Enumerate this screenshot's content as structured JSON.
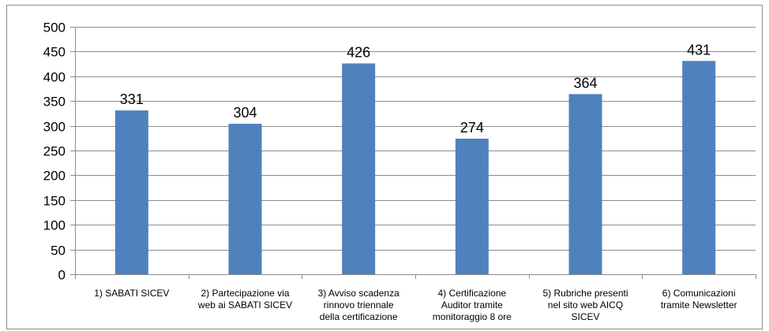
{
  "chart_data": {
    "type": "bar",
    "title": "",
    "xlabel": "",
    "ylabel": "",
    "ylim": [
      0,
      500
    ],
    "yticks": [
      0,
      50,
      100,
      150,
      200,
      250,
      300,
      350,
      400,
      450,
      500
    ],
    "grid": true,
    "legend": "none",
    "bar_color": "#4f81bd",
    "gridline_color": "#8c8c8c",
    "categories": [
      [
        "1) SABATI SICEV"
      ],
      [
        "2) Partecipazione via",
        "web ai SABATI SICEV"
      ],
      [
        "3) Avviso scadenza",
        "rinnovo triennale",
        "della certificazione"
      ],
      [
        "4) Certificazione",
        "Auditor tramite",
        "monitoraggio 8 ore"
      ],
      [
        "5) Rubriche presenti",
        "nel sito web AICQ",
        "SICEV"
      ],
      [
        "6) Comunicazioni",
        "tramite Newsletter"
      ]
    ],
    "values": [
      331,
      304,
      426,
      274,
      364,
      431
    ]
  }
}
